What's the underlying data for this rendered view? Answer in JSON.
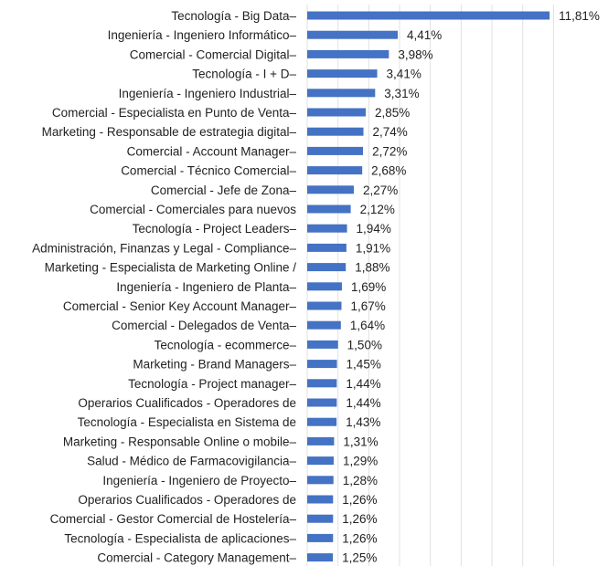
{
  "chart_data": {
    "type": "bar",
    "orientation": "horizontal",
    "grid": true,
    "bar_color": "#4472C4",
    "xlim": [
      0,
      12.5
    ],
    "categories": [
      "Tecnología - Big Data–",
      "Ingeniería - Ingeniero Informático–",
      "Comercial - Comercial Digital–",
      "Tecnología - I + D–",
      "Ingeniería - Ingeniero Industrial–",
      "Comercial - Especialista en Punto de Venta–",
      "Marketing - Responsable de estrategia digital–",
      "Comercial - Account Manager–",
      "Comercial - Técnico Comercial–",
      "Comercial - Jefe de Zona–",
      "Comercial - Comerciales para nuevos",
      "Tecnología - Project Leaders–",
      "Administración, Finanzas y Legal - Compliance–",
      "Marketing - Especialista de Marketing Online /",
      "Ingeniería - Ingeniero de Planta–",
      "Comercial - Senior Key Account Manager–",
      "Comercial - Delegados de Venta–",
      "Tecnología - ecommerce–",
      "Marketing - Brand Managers–",
      "Tecnología - Project manager–",
      "Operarios Cualificados - Operadores de",
      "Tecnología - Especialista en Sistema de",
      "Marketing - Responsable Online o mobile–",
      "Salud - Médico de Farmacovigilancia–",
      "Ingeniería - Ingeniero de Proyecto–",
      "Operarios Cualificados - Operadores de",
      "Comercial - Gestor Comercial de Hostelería–",
      "Tecnología - Especialista de aplicaciones–",
      "Comercial - Category Management–"
    ],
    "values": [
      11.81,
      4.41,
      3.98,
      3.41,
      3.31,
      2.85,
      2.74,
      2.72,
      2.68,
      2.27,
      2.12,
      1.94,
      1.91,
      1.88,
      1.69,
      1.67,
      1.64,
      1.5,
      1.45,
      1.44,
      1.44,
      1.43,
      1.31,
      1.29,
      1.28,
      1.26,
      1.26,
      1.26,
      1.25
    ],
    "value_labels": [
      "11,81%",
      "4,41%",
      "3,98%",
      "3,41%",
      "3,31%",
      "2,85%",
      "2,74%",
      "2,72%",
      "2,68%",
      "2,27%",
      "2,12%",
      "1,94%",
      "1,91%",
      "1,88%",
      "1,69%",
      "1,67%",
      "1,64%",
      "1,50%",
      "1,45%",
      "1,44%",
      "1,44%",
      "1,43%",
      "1,31%",
      "1,29%",
      "1,28%",
      "1,26%",
      "1,26%",
      "1,26%",
      "1,25%"
    ]
  }
}
